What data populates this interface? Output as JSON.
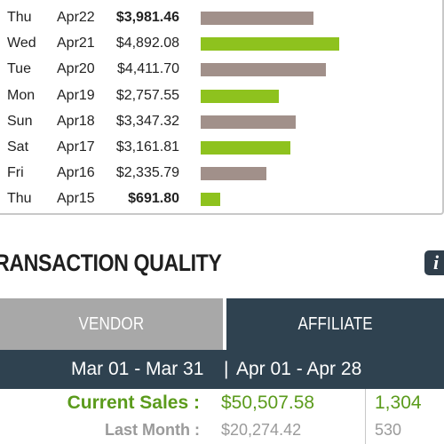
{
  "daily_sales": [
    {
      "day": "Thu",
      "date": "Apr22",
      "amount": "$3,981.46",
      "value": 3981.46,
      "bold": true,
      "color": "#a1908a"
    },
    {
      "day": "Wed",
      "date": "Apr21",
      "amount": "$4,892.08",
      "value": 4892.08,
      "bold": false,
      "color": "#8ec21e"
    },
    {
      "day": "Tue",
      "date": "Apr20",
      "amount": "$4,411.70",
      "value": 4411.7,
      "bold": false,
      "color": "#a1908a"
    },
    {
      "day": "Mon",
      "date": "Apr19",
      "amount": "$2,757.55",
      "value": 2757.55,
      "bold": false,
      "color": "#8ec21e"
    },
    {
      "day": "Sun",
      "date": "Apr18",
      "amount": "$3,347.32",
      "value": 3347.32,
      "bold": false,
      "color": "#a1908a"
    },
    {
      "day": "Sat",
      "date": "Apr17",
      "amount": "$3,161.81",
      "value": 3161.81,
      "bold": false,
      "color": "#8ec21e"
    },
    {
      "day": "Fri",
      "date": "Apr16",
      "amount": "$2,335.79",
      "value": 2335.79,
      "bold": false,
      "color": "#a1908a"
    },
    {
      "day": "Thu",
      "date": "Apr15",
      "amount": "$691.80",
      "value": 691.8,
      "bold": true,
      "color": "#8ec21e"
    }
  ],
  "section": {
    "title": "RANSACTION QUALITY",
    "info_icon_glyph": "i"
  },
  "tabs": {
    "vendor": "VENDOR",
    "affiliate": "AFFILIATE",
    "active": "affiliate"
  },
  "date_range": {
    "current": "Mar 01 - Mar 31",
    "separator": "|",
    "previous": "Apr 01 - Apr 28"
  },
  "summary": {
    "current_label": "Current Sales :",
    "current_value": "$50,507.58",
    "current_count": "1,304",
    "last_label": "Last Month :",
    "last_value": "$20,274.42",
    "last_count": "530"
  },
  "colors": {
    "accent_green": "#5b9b1c",
    "bar_green": "#8ec21e",
    "bar_taupe": "#a1908a",
    "navy": "#2f4250",
    "tab_inactive": "#a8a8a8"
  }
}
